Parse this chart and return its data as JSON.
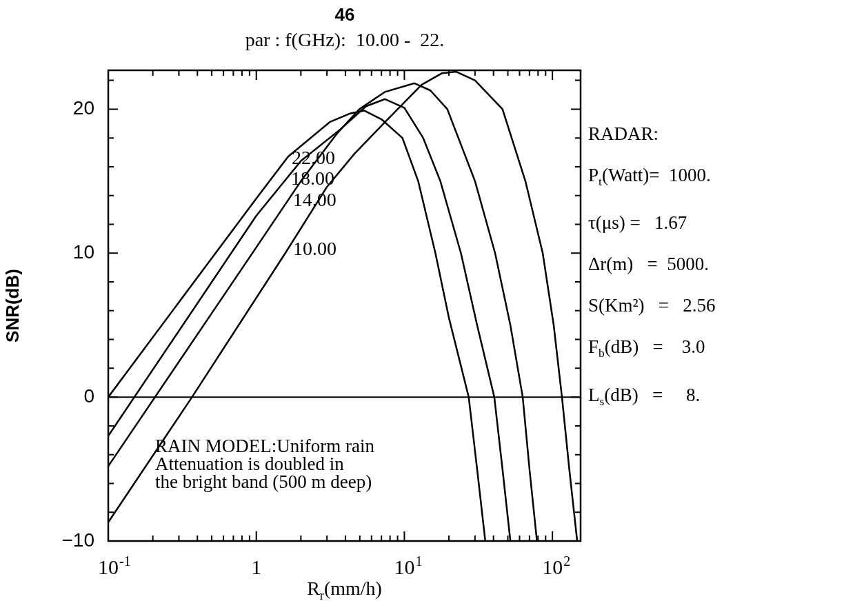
{
  "chart_data": {
    "type": "line",
    "title": "46",
    "subtitle": "par : f(GHz):  10.00 -  22.",
    "xlabel": "R$_{r}$(mm/h)",
    "ylabel": "SNR(dB)",
    "log": "x",
    "grid": false,
    "legend": false,
    "marker": "none",
    "line_style": "solid",
    "xlim": [
      0.1,
      155
    ],
    "ylim": [
      -10,
      22.7
    ],
    "xticks": [
      {
        "value": 0.1,
        "label": "10$^{-1}$"
      },
      {
        "value": 0.2,
        "label": null
      },
      {
        "value": 0.3,
        "label": null
      },
      {
        "value": 0.4,
        "label": null
      },
      {
        "value": 0.5,
        "label": null
      },
      {
        "value": 0.6,
        "label": null
      },
      {
        "value": 0.7,
        "label": null
      },
      {
        "value": 0.8,
        "label": null
      },
      {
        "value": 0.9,
        "label": null
      },
      1,
      {
        "value": 2,
        "label": null
      },
      {
        "value": 3,
        "label": null
      },
      {
        "value": 4,
        "label": null
      },
      {
        "value": 5,
        "label": null
      },
      {
        "value": 6,
        "label": null
      },
      {
        "value": 7,
        "label": null
      },
      {
        "value": 8,
        "label": null
      },
      {
        "value": 9,
        "label": null
      },
      {
        "value": 10,
        "label": "10$^{1}$"
      },
      {
        "value": 20,
        "label": null
      },
      {
        "value": 30,
        "label": null
      },
      {
        "value": 40,
        "label": null
      },
      {
        "value": 50,
        "label": null
      },
      {
        "value": 60,
        "label": null
      },
      {
        "value": 70,
        "label": null
      },
      {
        "value": 80,
        "label": null
      },
      {
        "value": 90,
        "label": null
      },
      {
        "value": 100,
        "label": "10$^{2}$"
      }
    ],
    "yticks": [
      -10,
      {
        "value": -8,
        "label": null
      },
      {
        "value": -6,
        "label": null
      },
      {
        "value": -4,
        "label": null
      },
      {
        "value": -2,
        "label": null
      },
      0,
      {
        "value": 2,
        "label": null
      },
      {
        "value": 4,
        "label": null
      },
      {
        "value": 6,
        "label": null
      },
      {
        "value": 8,
        "label": null
      },
      10,
      {
        "value": 12,
        "label": null
      },
      {
        "value": 14,
        "label": null
      },
      {
        "value": 16,
        "label": null
      },
      {
        "value": 18,
        "label": null
      },
      20,
      {
        "value": 22,
        "label": null
      }
    ],
    "ref_lines": [
      {
        "axis": "y",
        "value": 0,
        "color": "#000000"
      }
    ],
    "series": [
      {
        "name": "22.00",
        "color": "#000000",
        "x": [
          0.1,
          1,
          1.64,
          3.13,
          4.3,
          5.35,
          7,
          9.7,
          12.4,
          16.2,
          20,
          27.2,
          31,
          35.2
        ],
        "values": [
          0,
          13.8,
          16.7,
          19.1,
          19.7,
          19.9,
          19.3,
          18,
          15,
          10,
          5.5,
          0,
          -5,
          -10
        ]
      },
      {
        "name": "18.00",
        "color": "#000000",
        "x": [
          0.1,
          1,
          2,
          3.7,
          5.5,
          7.4,
          10,
          13.4,
          17.5,
          24.1,
          31,
          40.5,
          46,
          52
        ],
        "values": [
          -2.7,
          12.6,
          16.4,
          18.6,
          20.2,
          20.7,
          20.1,
          18,
          15,
          10,
          5,
          0,
          -5,
          -10
        ]
      },
      {
        "name": "14.00",
        "color": "#000000",
        "x": [
          0.1,
          1,
          2,
          3.5,
          4.97,
          7.4,
          11.7,
          15,
          19.5,
          30,
          41,
          52,
          63,
          70,
          78.6
        ],
        "values": [
          -4.8,
          10.4,
          15,
          18.3,
          20,
          21.2,
          21.8,
          21.3,
          20,
          15,
          10,
          5,
          0,
          -5,
          -10
        ]
      },
      {
        "name": "10.00",
        "color": "#000000",
        "x": [
          0.1,
          0.368,
          1.57,
          3,
          4.6,
          7.4,
          13.1,
          18,
          22.4,
          30,
          46,
          65.7,
          86,
          102,
          116,
          130,
          147
        ],
        "values": [
          -8.7,
          0,
          10,
          14.6,
          16.9,
          19.1,
          21.7,
          22.5,
          22.6,
          22,
          20,
          15,
          10,
          5,
          0,
          -5,
          -10
        ]
      }
    ],
    "annotations": [
      "RAIN MODEL:Uniform rain\nAttenuation is doubled in\nthe bright band (500 m deep)",
      "RADAR:",
      "P$_{t}$(Watt)=  1000.",
      "τ(μs) =   1.67",
      "Δr(m)   =  5000.",
      "S(Km²)   =   2.56",
      "F$_{b}$(dB)   =    3.0",
      "L$_{s}$(dB)   =     8."
    ]
  }
}
